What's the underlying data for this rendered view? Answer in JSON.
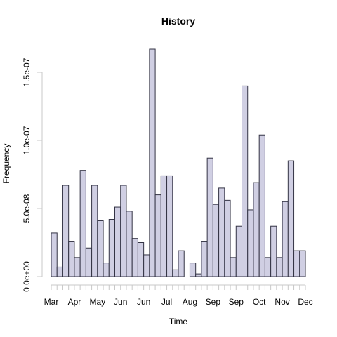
{
  "chart_data": {
    "type": "bar",
    "title": "History",
    "xlabel": "Time",
    "ylabel": "Frequency",
    "bar_color": "#d0cfe3",
    "bar_border_color": "#333344",
    "axis_color": "#c8c8c8",
    "xlim": [
      0,
      44
    ],
    "ylim": [
      0,
      1.7e-07
    ],
    "y_ticks": [
      0,
      5e-08,
      1e-07,
      1.5e-07
    ],
    "y_tick_labels": [
      "0.0e+00",
      "5.0e-08",
      "1.0e-07",
      "1.5e-07"
    ],
    "x_month_labels": [
      "Mar",
      "Apr",
      "May",
      "Jun",
      "Jun",
      "Jul",
      "Aug",
      "Sep",
      "Sep",
      "Oct",
      "Nov",
      "Dec"
    ],
    "values": [
      3.2e-08,
      7e-09,
      6.7e-08,
      2.6e-08,
      1.4e-08,
      7.8e-08,
      2.1e-08,
      6.7e-08,
      4.1e-08,
      1e-08,
      4.2e-08,
      5.1e-08,
      6.7e-08,
      4.8e-08,
      2.8e-08,
      2.5e-08,
      1.6e-08,
      1.67e-07,
      6e-08,
      7.4e-08,
      7.4e-08,
      5e-09,
      1.9e-08,
      0,
      1e-08,
      2e-09,
      2.6e-08,
      8.7e-08,
      5.3e-08,
      6.5e-08,
      5.6e-08,
      1.4e-08,
      3.7e-08,
      1.4e-07,
      4.9e-08,
      6.9e-08,
      1.04e-07,
      1.4e-08,
      3.7e-08,
      1.4e-08,
      5.5e-08,
      8.5e-08,
      1.9e-08,
      1.9e-08
    ]
  }
}
